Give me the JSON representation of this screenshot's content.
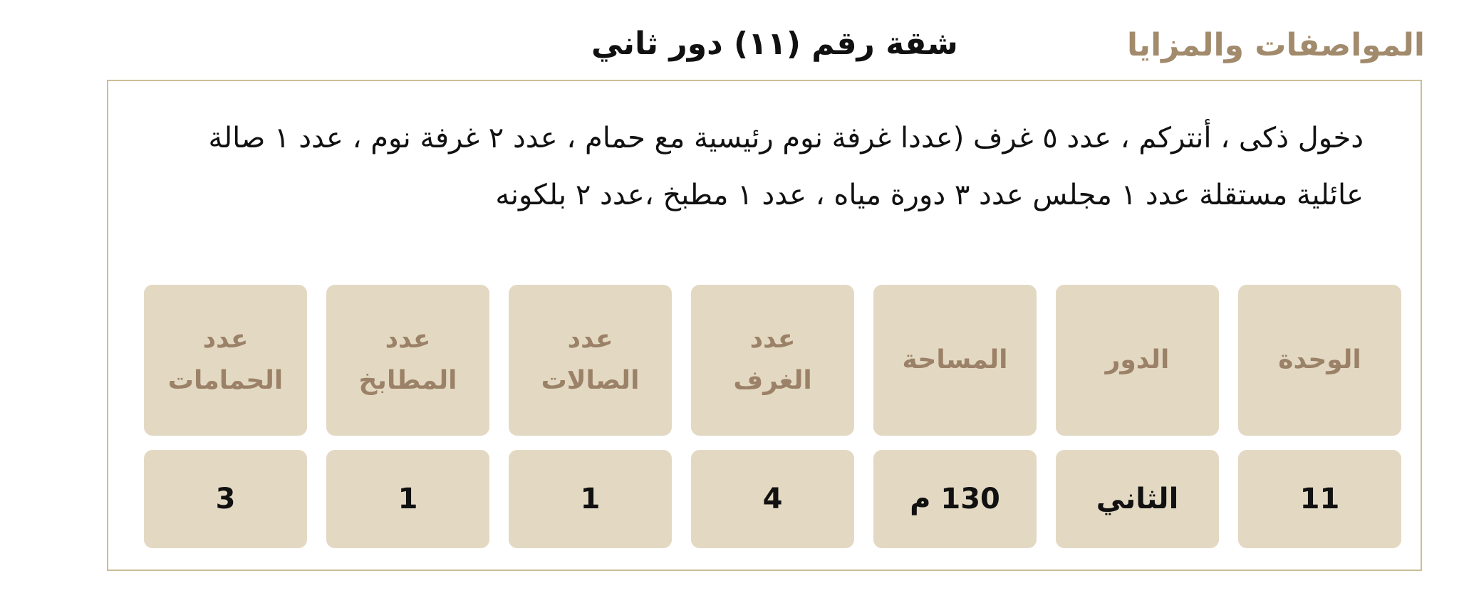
{
  "section_title": "المواصفات والمزايا",
  "unit_title": "شقة رقم (١١) دور ثاني",
  "description": "دخول ذكى ، أنتركم ، عدد ٥ غرف (عددا غرفة نوم رئيسية مع حمام ، عدد ٢ غرفة نوم ، عدد ١ صالة عائلية مستقلة عدد ١ مجلس عدد ٣ دورة مياه ، عدد ١ مطبخ ،عدد ٢ بلكونه",
  "table": {
    "headers": [
      "الوحدة",
      "الدور",
      "المساحة",
      "عدد\nالغرف",
      "عدد\nالصالات",
      "عدد\nالمطابخ",
      "عدد\nالحمامات"
    ],
    "values": [
      "11",
      "الثاني",
      "130 م",
      "4",
      "1",
      "1",
      "3"
    ]
  },
  "colors": {
    "accent": "#a28a6c",
    "cell": "#e3d9c3",
    "border": "#cbbd96"
  }
}
